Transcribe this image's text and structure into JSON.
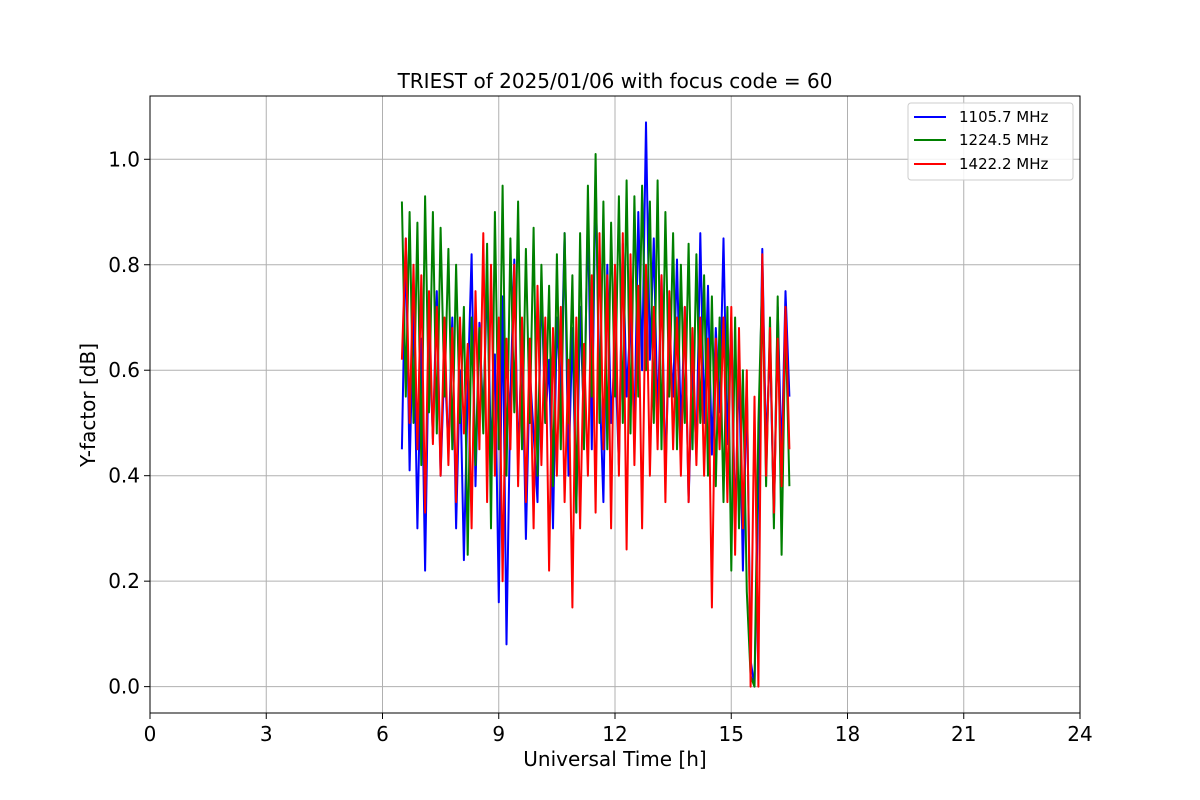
{
  "chart_data": {
    "type": "line",
    "title": "TRIEST of 2025/01/06 with focus code = 60",
    "xlabel": "Universal Time [h]",
    "ylabel": "Y-factor [dB]",
    "xlim": [
      0,
      24
    ],
    "ylim": [
      -0.05,
      1.12
    ],
    "xticks": [
      0,
      3,
      6,
      9,
      12,
      15,
      18,
      21,
      24
    ],
    "xtick_labels": [
      "0",
      "3",
      "6",
      "9",
      "12",
      "15",
      "18",
      "21",
      "24"
    ],
    "yticks": [
      0.0,
      0.2,
      0.4,
      0.6,
      0.8,
      1.0
    ],
    "ytick_labels": [
      "0.0",
      "0.2",
      "0.4",
      "0.6",
      "0.8",
      "1.0"
    ],
    "grid": true,
    "legend_position": "top-right",
    "x_unit": "hours UT",
    "series": [
      {
        "name": "1105.7 MHz",
        "color": "#0000ff",
        "x": [
          6.5,
          6.6,
          6.7,
          6.8,
          6.9,
          7.0,
          7.1,
          7.2,
          7.3,
          7.4,
          7.5,
          7.6,
          7.7,
          7.8,
          7.9,
          8.0,
          8.1,
          8.2,
          8.3,
          8.4,
          8.5,
          8.6,
          8.7,
          8.8,
          8.9,
          9.0,
          9.1,
          9.2,
          9.3,
          9.4,
          9.5,
          9.6,
          9.7,
          9.8,
          9.9,
          10.0,
          10.1,
          10.2,
          10.3,
          10.4,
          10.5,
          10.6,
          10.7,
          10.8,
          10.9,
          11.0,
          11.1,
          11.2,
          11.3,
          11.4,
          11.5,
          11.6,
          11.7,
          11.8,
          11.9,
          12.0,
          12.1,
          12.2,
          12.3,
          12.4,
          12.5,
          12.6,
          12.7,
          12.8,
          12.9,
          13.0,
          13.1,
          13.2,
          13.3,
          13.4,
          13.5,
          13.6,
          13.7,
          13.8,
          13.9,
          14.0,
          14.1,
          14.2,
          14.3,
          14.4,
          14.5,
          14.6,
          14.7,
          14.8,
          14.9,
          15.0,
          15.1,
          15.2,
          15.3,
          15.4,
          15.5,
          15.6,
          15.7,
          15.8,
          15.9,
          16.0,
          16.1,
          16.2,
          16.3,
          16.4,
          16.5
        ],
        "y": [
          0.45,
          0.85,
          0.41,
          0.72,
          0.3,
          0.66,
          0.22,
          0.68,
          0.47,
          0.75,
          0.4,
          0.62,
          0.45,
          0.7,
          0.3,
          0.6,
          0.24,
          0.56,
          0.82,
          0.38,
          0.69,
          0.5,
          0.78,
          0.44,
          0.63,
          0.16,
          0.74,
          0.08,
          0.55,
          0.81,
          0.42,
          0.67,
          0.28,
          0.6,
          0.48,
          0.35,
          0.77,
          0.5,
          0.62,
          0.3,
          0.7,
          0.55,
          0.86,
          0.4,
          0.68,
          0.33,
          0.72,
          0.5,
          0.9,
          0.45,
          0.97,
          0.58,
          0.35,
          0.8,
          0.5,
          0.64,
          0.42,
          0.84,
          0.55,
          0.7,
          0.48,
          0.9,
          0.6,
          1.07,
          0.62,
          0.85,
          0.5,
          0.78,
          0.4,
          0.67,
          0.55,
          0.81,
          0.48,
          0.72,
          0.35,
          0.62,
          0.44,
          0.86,
          0.5,
          0.76,
          0.44,
          0.68,
          0.52,
          0.85,
          0.46,
          0.7,
          0.3,
          0.62,
          0.22,
          0.58,
          0.05,
          0.0,
          0.38,
          0.83,
          0.45,
          0.65,
          0.32,
          0.72,
          0.43,
          0.75,
          0.55
        ]
      },
      {
        "name": "1224.5 MHz",
        "color": "#008000",
        "x": [
          6.5,
          6.6,
          6.7,
          6.8,
          6.9,
          7.0,
          7.1,
          7.2,
          7.3,
          7.4,
          7.5,
          7.6,
          7.7,
          7.8,
          7.9,
          8.0,
          8.1,
          8.2,
          8.3,
          8.4,
          8.5,
          8.6,
          8.7,
          8.8,
          8.9,
          9.0,
          9.1,
          9.2,
          9.3,
          9.4,
          9.5,
          9.6,
          9.7,
          9.8,
          9.9,
          10.0,
          10.1,
          10.2,
          10.3,
          10.4,
          10.5,
          10.6,
          10.7,
          10.8,
          10.9,
          11.0,
          11.1,
          11.2,
          11.3,
          11.4,
          11.5,
          11.6,
          11.7,
          11.8,
          11.9,
          12.0,
          12.1,
          12.2,
          12.3,
          12.4,
          12.5,
          12.6,
          12.7,
          12.8,
          12.9,
          13.0,
          13.1,
          13.2,
          13.3,
          13.4,
          13.5,
          13.6,
          13.7,
          13.8,
          13.9,
          14.0,
          14.1,
          14.2,
          14.3,
          14.4,
          14.5,
          14.6,
          14.7,
          14.8,
          14.9,
          15.0,
          15.1,
          15.2,
          15.3,
          15.4,
          15.5,
          15.6,
          15.7,
          15.8,
          15.9,
          16.0,
          16.1,
          16.2,
          16.3,
          16.4,
          16.5
        ],
        "y": [
          0.92,
          0.55,
          0.9,
          0.5,
          0.88,
          0.42,
          0.93,
          0.52,
          0.9,
          0.48,
          0.87,
          0.55,
          0.83,
          0.45,
          0.8,
          0.5,
          0.72,
          0.25,
          0.7,
          0.42,
          0.68,
          0.48,
          0.84,
          0.3,
          0.9,
          0.45,
          0.95,
          0.4,
          0.85,
          0.52,
          0.92,
          0.45,
          0.83,
          0.5,
          0.87,
          0.4,
          0.8,
          0.5,
          0.76,
          0.38,
          0.82,
          0.45,
          0.86,
          0.5,
          0.78,
          0.33,
          0.86,
          0.45,
          0.95,
          0.55,
          1.01,
          0.5,
          0.92,
          0.45,
          0.88,
          0.55,
          0.93,
          0.5,
          0.96,
          0.48,
          0.93,
          0.55,
          0.95,
          0.6,
          0.92,
          0.5,
          0.96,
          0.45,
          0.9,
          0.55,
          0.86,
          0.45,
          0.8,
          0.5,
          0.84,
          0.45,
          0.82,
          0.5,
          0.78,
          0.4,
          0.74,
          0.38,
          0.7,
          0.35,
          0.72,
          0.22,
          0.7,
          0.3,
          0.6,
          0.18,
          0.02,
          0.0,
          0.5,
          0.78,
          0.38,
          0.7,
          0.3,
          0.74,
          0.25,
          0.7,
          0.38
        ]
      },
      {
        "name": "1422.2 MHz",
        "color": "#ff0000",
        "x": [
          6.5,
          6.6,
          6.7,
          6.8,
          6.9,
          7.0,
          7.1,
          7.2,
          7.3,
          7.4,
          7.5,
          7.6,
          7.7,
          7.8,
          7.9,
          8.0,
          8.1,
          8.2,
          8.3,
          8.4,
          8.5,
          8.6,
          8.7,
          8.8,
          8.9,
          9.0,
          9.1,
          9.2,
          9.3,
          9.4,
          9.5,
          9.6,
          9.7,
          9.8,
          9.9,
          10.0,
          10.1,
          10.2,
          10.3,
          10.4,
          10.5,
          10.6,
          10.7,
          10.8,
          10.9,
          11.0,
          11.1,
          11.2,
          11.3,
          11.4,
          11.5,
          11.6,
          11.7,
          11.8,
          11.9,
          12.0,
          12.1,
          12.2,
          12.3,
          12.4,
          12.5,
          12.6,
          12.7,
          12.8,
          12.9,
          13.0,
          13.1,
          13.2,
          13.3,
          13.4,
          13.5,
          13.6,
          13.7,
          13.8,
          13.9,
          14.0,
          14.1,
          14.2,
          14.3,
          14.4,
          14.5,
          14.6,
          14.7,
          14.8,
          14.9,
          15.0,
          15.1,
          15.2,
          15.3,
          15.4,
          15.5,
          15.6,
          15.7,
          15.8,
          15.9,
          16.0,
          16.1,
          16.2,
          16.3,
          16.4,
          16.5
        ],
        "y": [
          0.62,
          0.85,
          0.5,
          0.8,
          0.45,
          0.78,
          0.33,
          0.75,
          0.46,
          0.72,
          0.4,
          0.7,
          0.42,
          0.68,
          0.35,
          0.7,
          0.48,
          0.65,
          0.3,
          0.75,
          0.45,
          0.86,
          0.35,
          0.8,
          0.4,
          0.7,
          0.2,
          0.66,
          0.45,
          0.8,
          0.38,
          0.7,
          0.35,
          0.66,
          0.3,
          0.76,
          0.42,
          0.7,
          0.22,
          0.68,
          0.4,
          0.72,
          0.35,
          0.62,
          0.15,
          0.7,
          0.3,
          0.65,
          0.4,
          0.78,
          0.33,
          0.86,
          0.45,
          0.78,
          0.3,
          0.8,
          0.4,
          0.86,
          0.26,
          0.82,
          0.42,
          0.76,
          0.3,
          0.8,
          0.4,
          0.72,
          0.45,
          0.78,
          0.35,
          0.75,
          0.45,
          0.7,
          0.4,
          0.72,
          0.35,
          0.68,
          0.42,
          0.7,
          0.4,
          0.66,
          0.15,
          0.66,
          0.45,
          0.7,
          0.35,
          0.72,
          0.25,
          0.68,
          0.3,
          0.6,
          0.0,
          0.55,
          0.0,
          0.82,
          0.4,
          0.68,
          0.33,
          0.66,
          0.38,
          0.72,
          0.45
        ]
      }
    ]
  }
}
